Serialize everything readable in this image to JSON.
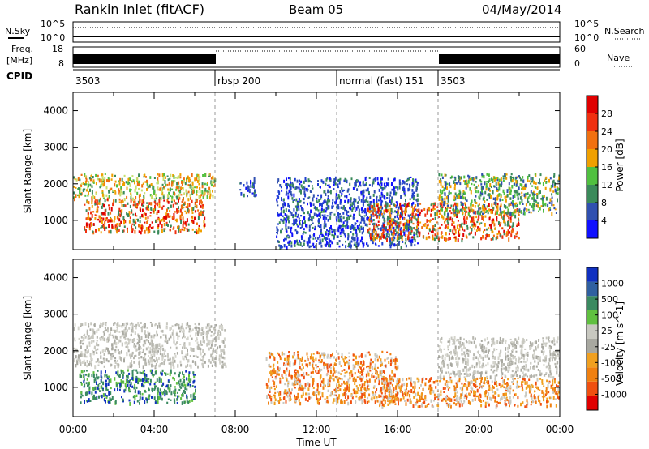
{
  "header": {
    "title": "Rankin Inlet (fitACF)",
    "beam": "Beam 05",
    "date": "04/May/2014"
  },
  "left_labels": {
    "nsky": "N.Sky",
    "freq_line1": "Freq.",
    "freq_line2": "[MHz]",
    "cpid": "CPID"
  },
  "right_labels": {
    "nsearch": "N.Search",
    "nave": "Nave"
  },
  "strip_ticks": {
    "noise_left": [
      "10^5",
      "10^0"
    ],
    "noise_right": [
      "10^5",
      "10^0"
    ],
    "freq_left": [
      "18",
      "8"
    ],
    "nave_right": [
      "60",
      "0"
    ]
  },
  "cpid_segments": [
    {
      "label": "3503",
      "start": 0,
      "end": 7.0
    },
    {
      "label": "rbsp 200",
      "start": 7.0,
      "end": 13.0
    },
    {
      "label": "normal (fast) 151",
      "start": 13.0,
      "end": 18.0
    },
    {
      "label": "3503",
      "start": 18.0,
      "end": 24
    }
  ],
  "colors": {
    "power_scale": [
      "#1010ff",
      "#3050b0",
      "#3a8a5a",
      "#50c040",
      "#f0a000",
      "#f07010",
      "#f03010",
      "#e00000"
    ],
    "velocity_scale": [
      "#1030c0",
      "#3060a0",
      "#3a8a60",
      "#60c040",
      "#c8c8c0",
      "#a8a8a0",
      "#f0a020",
      "#f08010",
      "#f05010",
      "#e00000"
    ]
  },
  "chart_data": [
    {
      "type": "heatmap",
      "panel": "power",
      "xlabel": "",
      "ylabel": "Slant Range [km]",
      "x_unit": "hours UT",
      "xlim": [
        0,
        24
      ],
      "ylim": [
        200,
        4500
      ],
      "yticks": [
        "1000",
        "2000",
        "3000",
        "4000"
      ],
      "colorbar_label": "Power [dB]",
      "colorbar_ticks": [
        "4",
        "8",
        "12",
        "16",
        "20",
        "24",
        "28"
      ],
      "regions": [
        {
          "t0": 0.0,
          "t1": 7.0,
          "r0": 1600,
          "r1": 2300,
          "value": "green-orange"
        },
        {
          "t0": 0.5,
          "t1": 6.5,
          "r0": 700,
          "r1": 1600,
          "value": "strong-red"
        },
        {
          "t0": 8.2,
          "t1": 9.0,
          "r0": 1700,
          "r1": 2200,
          "value": "weak-blue"
        },
        {
          "t0": 10.0,
          "t1": 17.0,
          "r0": 300,
          "r1": 2200,
          "value": "weak-blue"
        },
        {
          "t0": 14.5,
          "t1": 22.0,
          "r0": 500,
          "r1": 1500,
          "value": "orange-red"
        },
        {
          "t0": 18.0,
          "t1": 24.0,
          "r0": 1200,
          "r1": 2300,
          "value": "green"
        }
      ]
    },
    {
      "type": "heatmap",
      "panel": "velocity",
      "xlabel": "Time UT",
      "ylabel": "Slant Range [km]",
      "x_unit": "hours UT",
      "xlim": [
        0,
        24
      ],
      "ylim": [
        200,
        4500
      ],
      "xticks": [
        "00:00",
        "04:00",
        "08:00",
        "12:00",
        "16:00",
        "20:00",
        "00:00"
      ],
      "yticks": [
        "1000",
        "2000",
        "3000",
        "4000"
      ],
      "colorbar_label": "Velocity [m s^-1]",
      "colorbar_ticks": [
        "1000",
        "500",
        "100",
        "25",
        "-25",
        "-100",
        "-500",
        "-1000"
      ],
      "regions": [
        {
          "t0": 0.0,
          "t1": 7.5,
          "r0": 1600,
          "r1": 2800,
          "value": "grey"
        },
        {
          "t0": 0.3,
          "t1": 6.0,
          "r0": 600,
          "r1": 1500,
          "value": "green-blue"
        },
        {
          "t0": 9.5,
          "t1": 16.0,
          "r0": 600,
          "r1": 2000,
          "value": "orange"
        },
        {
          "t0": 15.0,
          "t1": 24.0,
          "r0": 500,
          "r1": 1300,
          "value": "orange"
        },
        {
          "t0": 18.0,
          "t1": 24.0,
          "r0": 1300,
          "r1": 2400,
          "value": "grey"
        }
      ]
    }
  ]
}
